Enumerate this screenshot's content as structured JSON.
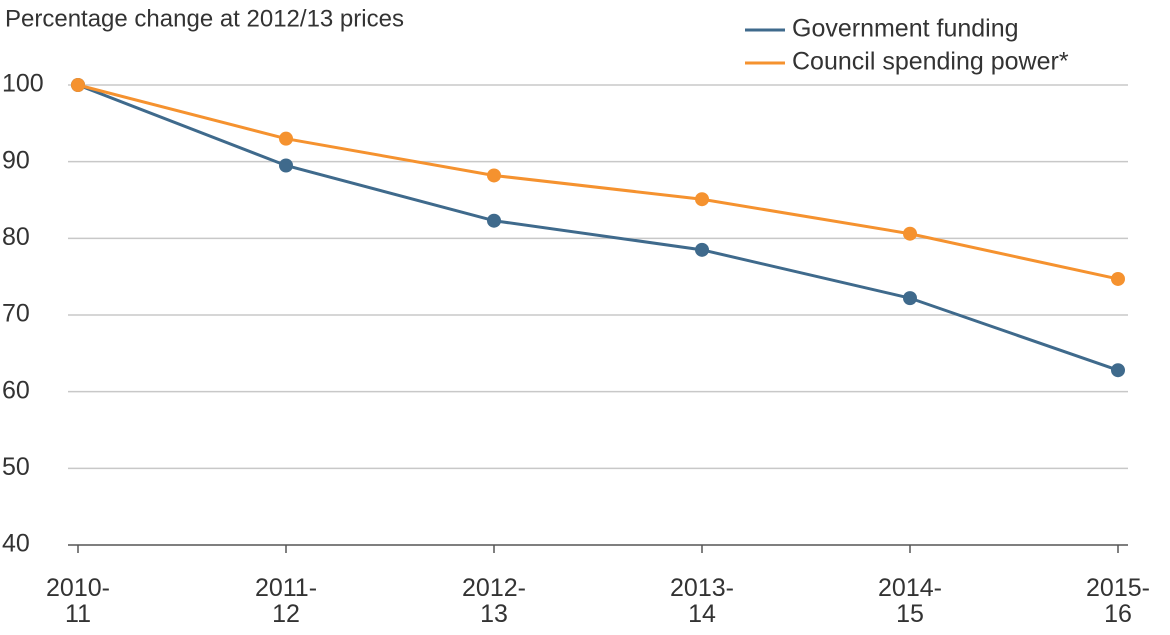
{
  "chart_data": {
    "type": "line",
    "subtitle": "Percentage change at 2012/13 prices",
    "categories": [
      "2010-\n11",
      "2011-\n12",
      "2012-\n13",
      "2013-\n14",
      "2014-\n15",
      "2015-\n16"
    ],
    "series": [
      {
        "name": "Government funding",
        "color": "#3f6a8c",
        "values": [
          100,
          89.5,
          82.3,
          78.5,
          72.2,
          62.8
        ]
      },
      {
        "name": "Council spending power*",
        "color": "#f5922f",
        "values": [
          100,
          93,
          88.2,
          85.1,
          80.6,
          74.7
        ]
      }
    ],
    "ylim": [
      40,
      100
    ],
    "yticks": [
      40,
      50,
      60,
      70,
      80,
      90,
      100
    ],
    "grid": true,
    "legend": "top-right"
  }
}
